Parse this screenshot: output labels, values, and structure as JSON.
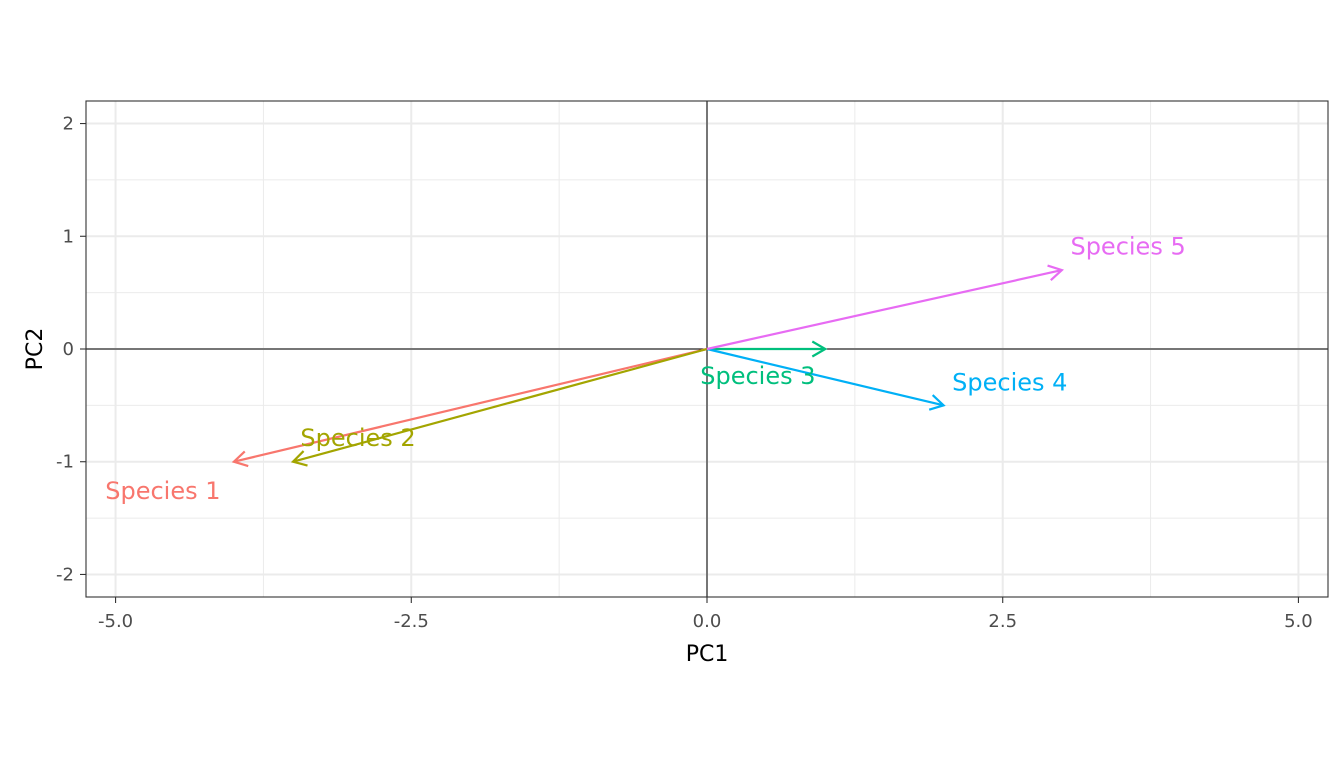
{
  "chart_data": {
    "type": "biplot-vectors",
    "xlabel": "PC1",
    "ylabel": "PC2",
    "xlim": [
      -5.25,
      5.25
    ],
    "ylim": [
      -2.2,
      2.2
    ],
    "x_ticks": [
      -5.0,
      -2.5,
      0.0,
      2.5,
      5.0
    ],
    "x_tick_labels": [
      "-5.0",
      "-2.5",
      "0.0",
      "2.5",
      "5.0"
    ],
    "y_ticks": [
      -2,
      -1,
      0,
      1,
      2
    ],
    "y_tick_labels": [
      "-2",
      "-1",
      "0",
      "1",
      "2"
    ],
    "grid": true,
    "legend": "none",
    "reference_lines": {
      "x": 0,
      "y": 0
    },
    "series": [
      {
        "name": "Species 1",
        "x": -4.0,
        "y": -1.0,
        "label_x": -4.6,
        "label_y": -1.25,
        "color": "#F8766D"
      },
      {
        "name": "Species 2",
        "x": -3.5,
        "y": -1.0,
        "label_x": -2.95,
        "label_y": -0.78,
        "color": "#A3A500"
      },
      {
        "name": "Species 3",
        "x": 1.0,
        "y": 0.0,
        "label_x": 0.43,
        "label_y": -0.23,
        "color": "#00BF7D"
      },
      {
        "name": "Species 4",
        "x": 2.0,
        "y": -0.5,
        "label_x": 2.56,
        "label_y": -0.29,
        "color": "#00B0F6"
      },
      {
        "name": "Species 5",
        "x": 3.0,
        "y": 0.7,
        "label_x": 3.56,
        "label_y": 0.92,
        "color": "#E76BF3"
      }
    ]
  }
}
